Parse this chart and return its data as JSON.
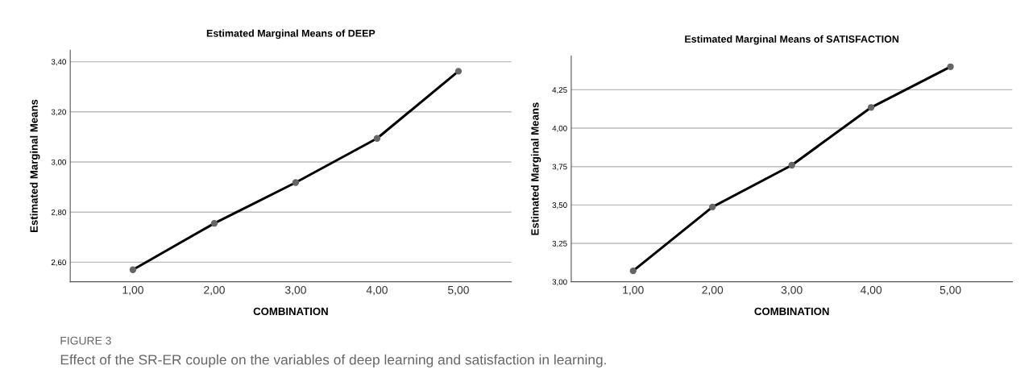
{
  "chart_data": [
    {
      "type": "line",
      "title": "Estimated Marginal Means of DEEP",
      "xlabel": "COMBINATION",
      "ylabel": "Estimated Marginal Means",
      "x": [
        1,
        2,
        3,
        4,
        5
      ],
      "series": [
        {
          "color": "#000000",
          "values": [
            2.57,
            2.755,
            2.918,
            3.094,
            3.362
          ]
        }
      ],
      "xlim": [
        0.23,
        5.65
      ],
      "xticks": [
        {
          "value": 1,
          "label": "1,00"
        },
        {
          "value": 2,
          "label": "2,00"
        },
        {
          "value": 3,
          "label": "3,00"
        },
        {
          "value": 4,
          "label": "4,00"
        },
        {
          "value": 5,
          "label": "5,00"
        }
      ],
      "ylim": [
        2.522,
        3.446
      ],
      "yticks": [
        {
          "value": 2.6,
          "label": "2,60"
        },
        {
          "value": 2.8,
          "label": "2,80"
        },
        {
          "value": 3.0,
          "label": "3,00"
        },
        {
          "value": 3.2,
          "label": "3,20"
        },
        {
          "value": 3.4,
          "label": "3,40"
        }
      ],
      "grid": "y",
      "marker": "circle",
      "line_style": "solid",
      "legend": false,
      "annotations": [
        "FIGURE 3",
        "Effect of the SR-ER couple on the variables of deep learning and satisfaction in learning."
      ]
    },
    {
      "type": "line",
      "title": "Estimated Marginal Means of SATISFACTION",
      "xlabel": "COMBINATION",
      "ylabel": "Estimated Marginal Means",
      "x": [
        1,
        2,
        3,
        4,
        5
      ],
      "series": [
        {
          "color": "#000000",
          "values": [
            3.071,
            3.487,
            3.759,
            4.135,
            4.4
          ]
        }
      ],
      "xlim": [
        0.22,
        5.78
      ],
      "xticks": [
        {
          "value": 1,
          "label": "1,00"
        },
        {
          "value": 2,
          "label": "2,00"
        },
        {
          "value": 3,
          "label": "3,00"
        },
        {
          "value": 4,
          "label": "4,00"
        },
        {
          "value": 5,
          "label": "5,00"
        }
      ],
      "ylim": [
        3.0,
        4.47
      ],
      "yticks": [
        {
          "value": 3.0,
          "label": "3,00"
        },
        {
          "value": 3.25,
          "label": "3,25"
        },
        {
          "value": 3.5,
          "label": "3,50"
        },
        {
          "value": 3.75,
          "label": "3,75"
        },
        {
          "value": 4.0,
          "label": "4,00"
        },
        {
          "value": 4.25,
          "label": "4,25"
        }
      ],
      "grid": "y",
      "marker": "circle",
      "line_style": "solid",
      "legend": false
    }
  ]
}
